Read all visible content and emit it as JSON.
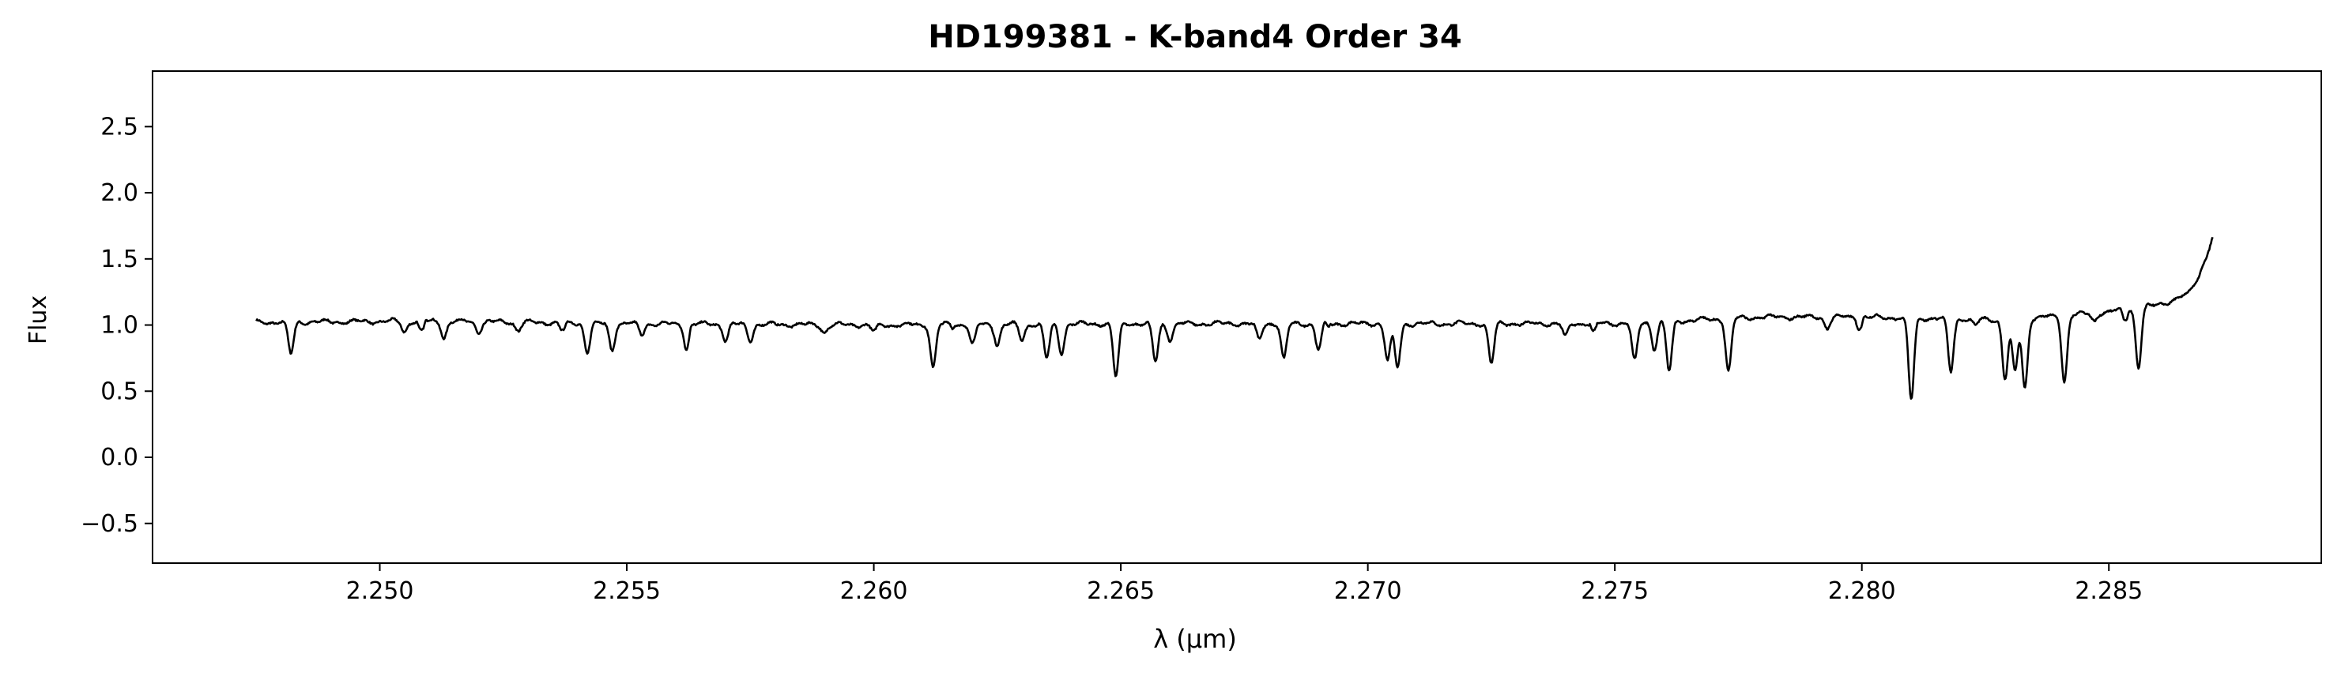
{
  "chart_data": {
    "type": "line",
    "title": "HD199381 - K-band4 Order 34",
    "xlabel": "λ (μm)",
    "ylabel": "Flux",
    "xlim": [
      2.2454,
      2.2893
    ],
    "ylim": [
      -0.8,
      2.92
    ],
    "xticks": [
      2.25,
      2.255,
      2.26,
      2.265,
      2.27,
      2.275,
      2.28,
      2.285
    ],
    "xtick_labels": [
      "2.250",
      "2.255",
      "2.260",
      "2.265",
      "2.270",
      "2.275",
      "2.280",
      "2.285"
    ],
    "yticks": [
      -0.5,
      0.0,
      0.5,
      1.0,
      1.5,
      2.0,
      2.5
    ],
    "ytick_labels": [
      "−0.5",
      "0.0",
      "0.5",
      "1.0",
      "1.5",
      "2.0",
      "2.5"
    ],
    "grid": false,
    "line_color": "#000000",
    "x_range": [
      2.2475,
      2.2871
    ],
    "continuum": [
      [
        2.2475,
        1.02
      ],
      [
        2.251,
        1.03
      ],
      [
        2.255,
        1.01
      ],
      [
        2.26,
        1.0
      ],
      [
        2.265,
        1.01
      ],
      [
        2.27,
        1.01
      ],
      [
        2.275,
        1.01
      ],
      [
        2.278,
        1.06
      ],
      [
        2.28,
        1.06
      ],
      [
        2.283,
        1.04
      ],
      [
        2.285,
        1.1
      ],
      [
        2.286,
        1.15
      ],
      [
        2.2866,
        1.23
      ],
      [
        2.2868,
        1.35
      ],
      [
        2.287,
        1.55
      ],
      [
        2.2871,
        1.66
      ]
    ],
    "absorption_lines": [
      [
        2.2482,
        0.24
      ],
      [
        2.2505,
        0.08
      ],
      [
        2.2513,
        0.12
      ],
      [
        2.252,
        0.08
      ],
      [
        2.2528,
        0.06
      ],
      [
        2.2537,
        0.06
      ],
      [
        2.2542,
        0.22
      ],
      [
        2.2547,
        0.2
      ],
      [
        2.2553,
        0.08
      ],
      [
        2.2562,
        0.12
      ],
      [
        2.257,
        0.12
      ],
      [
        2.2575,
        0.12
      ],
      [
        2.259,
        0.06
      ],
      [
        2.26,
        0.05
      ],
      [
        2.2612,
        0.32
      ],
      [
        2.262,
        0.15
      ],
      [
        2.2625,
        0.15
      ],
      [
        2.263,
        0.12
      ],
      [
        2.2635,
        0.26
      ],
      [
        2.2638,
        0.22
      ],
      [
        2.2649,
        0.4
      ],
      [
        2.2657,
        0.29
      ],
      [
        2.266,
        0.12
      ],
      [
        2.2678,
        0.12
      ],
      [
        2.2683,
        0.27
      ],
      [
        2.269,
        0.2
      ],
      [
        2.2704,
        0.28
      ],
      [
        2.2706,
        0.33
      ],
      [
        2.2725,
        0.3
      ],
      [
        2.274,
        0.1
      ],
      [
        2.2754,
        0.29
      ],
      [
        2.2758,
        0.2
      ],
      [
        2.2761,
        0.38
      ],
      [
        2.2773,
        0.4
      ],
      [
        2.2793,
        0.08
      ],
      [
        2.281,
        0.62
      ],
      [
        2.2818,
        0.4
      ],
      [
        2.2823,
        0.05
      ],
      [
        2.2829,
        0.45
      ],
      [
        2.2831,
        0.4
      ],
      [
        2.2833,
        0.52
      ],
      [
        2.2841,
        0.5
      ],
      [
        2.2847,
        0.06
      ],
      [
        2.2856,
        0.45
      ]
    ]
  }
}
